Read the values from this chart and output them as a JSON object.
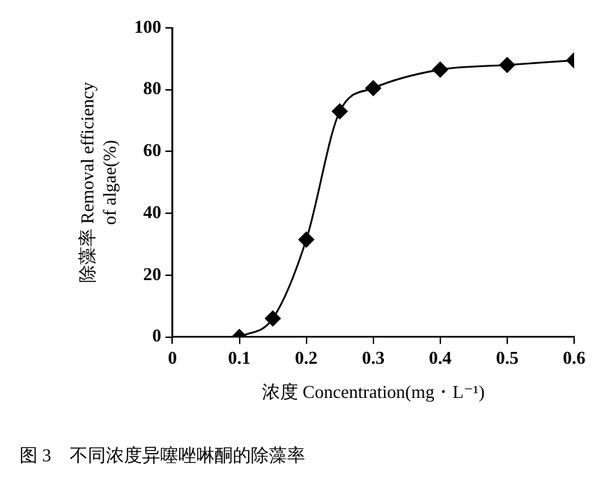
{
  "chart_data": {
    "type": "line",
    "xlabel": "浓度 Concentration(mg・L⁻¹)",
    "ylabel": "除藻率 Removal efficiency of algae(%)",
    "x": [
      0.1,
      0.15,
      0.2,
      0.25,
      0.3,
      0.4,
      0.5,
      0.6
    ],
    "series": [
      {
        "color": "#000000",
        "values": [
          0,
          6,
          31.5,
          73,
          80.5,
          86.5,
          88,
          89.5
        ]
      }
    ],
    "xlim": [
      0,
      0.6
    ],
    "xticks": [
      0,
      0.1,
      0.2,
      0.3,
      0.4,
      0.5,
      0.6
    ],
    "ylim": [
      0,
      100
    ],
    "yticks": [
      0,
      20,
      40,
      60,
      80,
      100
    ],
    "grid": false,
    "legend": false,
    "marker": "diamond",
    "line_style": "solid",
    "annotations": [
      "图 3　不同浓度异噻唑啉酮的除藻率"
    ]
  }
}
